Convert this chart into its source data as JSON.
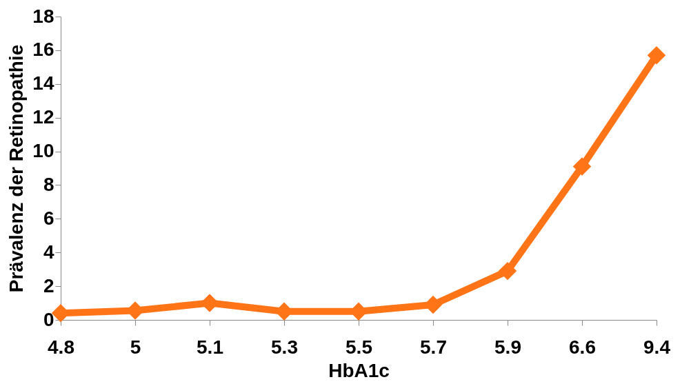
{
  "chart_data": {
    "type": "line",
    "xlabel": "HbA1c",
    "ylabel": "Prävalenz der Retinopathie",
    "categories": [
      "4.8",
      "5",
      "5.1",
      "5.3",
      "5.5",
      "5.7",
      "5.9",
      "6.6",
      "9.4"
    ],
    "series": [
      {
        "color": "#ff7417",
        "values": [
          0.4,
          0.55,
          1.0,
          0.5,
          0.5,
          0.9,
          2.9,
          9.1,
          15.7
        ]
      }
    ],
    "ylim": [
      0,
      18
    ],
    "yticks": [
      0,
      2,
      4,
      6,
      8,
      10,
      12,
      14,
      16,
      18
    ],
    "grid": false,
    "marker": "diamond",
    "line_style": "solid"
  }
}
